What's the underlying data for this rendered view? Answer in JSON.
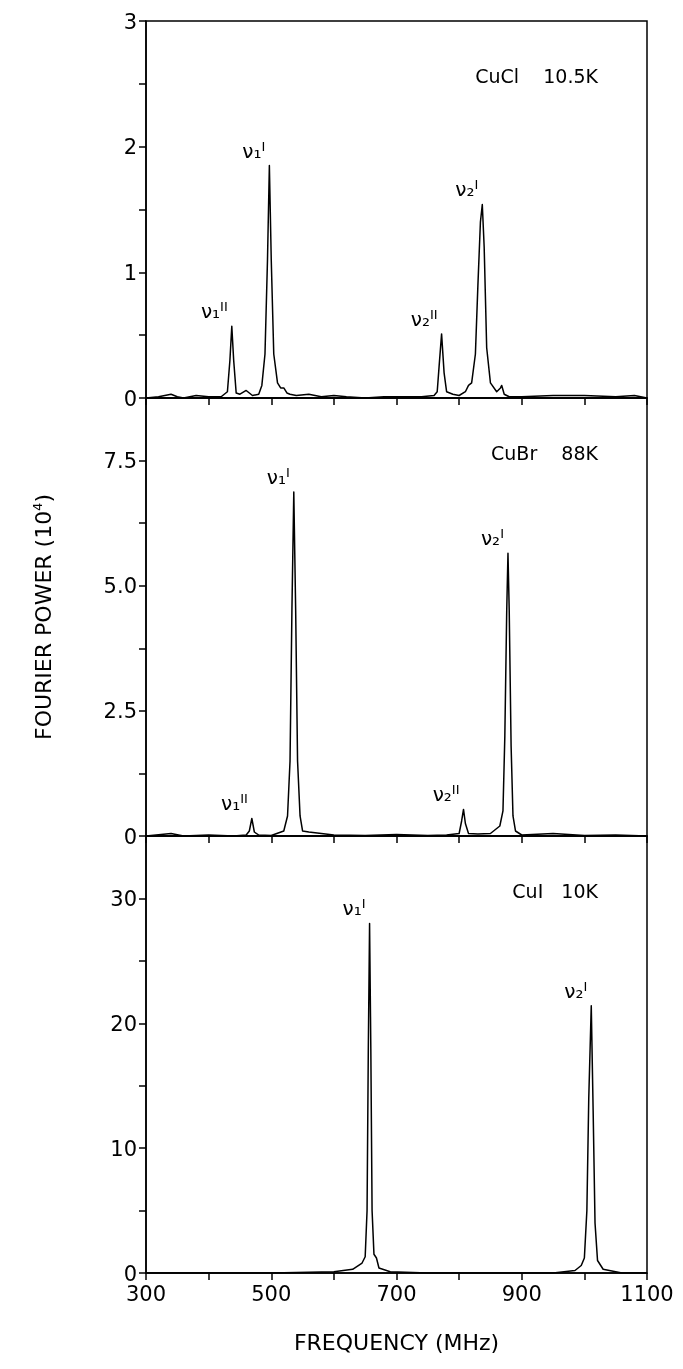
{
  "chart_data": [
    {
      "type": "line",
      "title": "CuCl    10.5K",
      "color": "#000000",
      "marker": "none",
      "grid": false,
      "tick_labels": "y",
      "x": [
        300,
        320,
        340,
        350,
        360,
        380,
        400,
        420,
        425,
        430,
        434,
        437,
        440,
        444,
        450,
        460,
        465,
        470,
        480,
        485,
        490,
        494,
        497,
        500,
        504,
        510,
        515,
        520,
        525,
        530,
        540,
        560,
        580,
        600,
        620,
        650,
        680,
        700,
        740,
        760,
        765,
        768,
        772,
        776,
        780,
        790,
        800,
        810,
        815,
        820,
        826,
        830,
        834,
        837,
        840,
        844,
        850,
        860,
        866,
        868,
        872,
        880,
        900,
        950,
        1000,
        1050,
        1080,
        1100
      ],
      "values": [
        0,
        0.01,
        0.03,
        0.01,
        0,
        0.02,
        0.01,
        0.01,
        0.03,
        0.05,
        0.3,
        0.57,
        0.3,
        0.04,
        0.03,
        0.06,
        0.04,
        0.02,
        0.03,
        0.1,
        0.35,
        1.1,
        1.85,
        1.1,
        0.35,
        0.12,
        0.08,
        0.08,
        0.04,
        0.03,
        0.02,
        0.03,
        0.01,
        0.02,
        0.01,
        0,
        0.01,
        0.01,
        0.01,
        0.02,
        0.05,
        0.25,
        0.51,
        0.2,
        0.05,
        0.03,
        0.02,
        0.05,
        0.1,
        0.12,
        0.35,
        0.9,
        1.4,
        1.54,
        1.2,
        0.4,
        0.12,
        0.05,
        0.08,
        0.1,
        0.03,
        0.01,
        0.01,
        0.02,
        0.02,
        0.01,
        0.02,
        0
      ],
      "xlim": [
        300,
        1100
      ],
      "xticks": [
        300,
        {
          "value": 400,
          "label": null
        },
        500,
        {
          "value": 600,
          "label": null
        },
        700,
        {
          "value": 800,
          "label": null
        },
        900,
        {
          "value": 1000,
          "label": null
        },
        1100
      ],
      "ylim": [
        0,
        3
      ],
      "yticks": [
        0,
        {
          "value": 0.5,
          "label": null
        },
        1,
        {
          "value": 1.5,
          "label": null
        },
        2,
        {
          "value": 2.5,
          "label": null
        },
        3
      ],
      "annotations": [
        {
          "text": "ν₁$^{II}$",
          "x": 437,
          "y": 0.57
        },
        {
          "text": "ν₁$^{I}$",
          "x": 497,
          "y": 1.85
        },
        {
          "text": "ν₂$^{II}$",
          "x": 772,
          "y": 0.51
        },
        {
          "text": "ν₂$^{I}$",
          "x": 837,
          "y": 1.54
        }
      ]
    },
    {
      "type": "line",
      "title": "CuBr    88K",
      "ylabel": "FOURIER POWER (10$^{4}$)",
      "color": "#000000",
      "marker": "none",
      "grid": false,
      "tick_labels": "y",
      "x": [
        300,
        340,
        360,
        400,
        440,
        460,
        465,
        469,
        473,
        480,
        500,
        520,
        526,
        530,
        533,
        536,
        539,
        542,
        546,
        550,
        560,
        580,
        600,
        650,
        700,
        750,
        780,
        800,
        804,
        807,
        810,
        815,
        830,
        850,
        865,
        870,
        873,
        876,
        878,
        880,
        883,
        886,
        890,
        900,
        950,
        1000,
        1050,
        1100
      ],
      "values": [
        0,
        0.05,
        0,
        0.02,
        0,
        0.02,
        0.1,
        0.35,
        0.08,
        0.02,
        0.01,
        0.1,
        0.4,
        1.5,
        4.5,
        6.87,
        4.5,
        1.5,
        0.4,
        0.1,
        0.08,
        0.05,
        0.02,
        0.01,
        0.03,
        0.01,
        0.02,
        0.05,
        0.3,
        0.53,
        0.25,
        0.05,
        0.04,
        0.05,
        0.2,
        0.5,
        2,
        4.5,
        5.65,
        4.5,
        1.8,
        0.4,
        0.1,
        0.02,
        0.05,
        0.01,
        0.02,
        0
      ],
      "xlim": [
        300,
        1100
      ],
      "xticks": [
        300,
        {
          "value": 400,
          "label": null
        },
        500,
        {
          "value": 600,
          "label": null
        },
        700,
        {
          "value": 800,
          "label": null
        },
        900,
        {
          "value": 1000,
          "label": null
        },
        1100
      ],
      "ylim": [
        0,
        8.75
      ],
      "yticks": [
        0,
        {
          "value": 1.25,
          "label": null
        },
        2.5,
        {
          "value": 3.75,
          "label": null
        },
        {
          "value": 5,
          "label": "5.0"
        },
        {
          "value": 6.25,
          "label": null
        },
        7.5
      ],
      "annotations": [
        {
          "text": "ν₁$^{II}$",
          "x": 469,
          "y": 0.35
        },
        {
          "text": "ν₁$^{I}$",
          "x": 536,
          "y": 6.87
        },
        {
          "text": "ν₂$^{II}$",
          "x": 807,
          "y": 0.53
        },
        {
          "text": "ν₂$^{I}$",
          "x": 878,
          "y": 5.65
        }
      ]
    },
    {
      "type": "line",
      "title": "CuI   10K",
      "xlabel": "FREQUENCY (MHz)",
      "color": "#000000",
      "marker": "none",
      "grid": false,
      "x": [
        300,
        500,
        600,
        630,
        645,
        650,
        653,
        655,
        657,
        659,
        661,
        664,
        668,
        672,
        690,
        750,
        800,
        950,
        985,
        995,
        1000,
        1004,
        1007,
        1011,
        1014,
        1017,
        1021,
        1030,
        1060,
        1100
      ],
      "values": [
        0,
        0,
        0.1,
        0.3,
        0.8,
        1.3,
        5,
        18,
        28,
        18,
        5,
        1.5,
        1.2,
        0.4,
        0.1,
        0,
        0,
        0,
        0.2,
        0.6,
        1.2,
        5,
        14,
        21.4,
        13,
        4,
        1,
        0.3,
        0,
        0
      ],
      "xlim": [
        300,
        1100
      ],
      "xticks": [
        300,
        {
          "value": 400,
          "label": null
        },
        500,
        {
          "value": 600,
          "label": null
        },
        700,
        {
          "value": 800,
          "label": null
        },
        900,
        {
          "value": 1000,
          "label": null
        },
        1100
      ],
      "ylim": [
        0,
        35
      ],
      "yticks": [
        0,
        {
          "value": 5,
          "label": null
        },
        10,
        {
          "value": 15,
          "label": null
        },
        20,
        {
          "value": 25,
          "label": null
        },
        30
      ],
      "annotations": [
        {
          "text": "ν₁$^{I}$",
          "x": 657,
          "y": 28
        },
        {
          "text": "ν₂$^{I}$",
          "x": 1011,
          "y": 21.4
        }
      ]
    }
  ]
}
